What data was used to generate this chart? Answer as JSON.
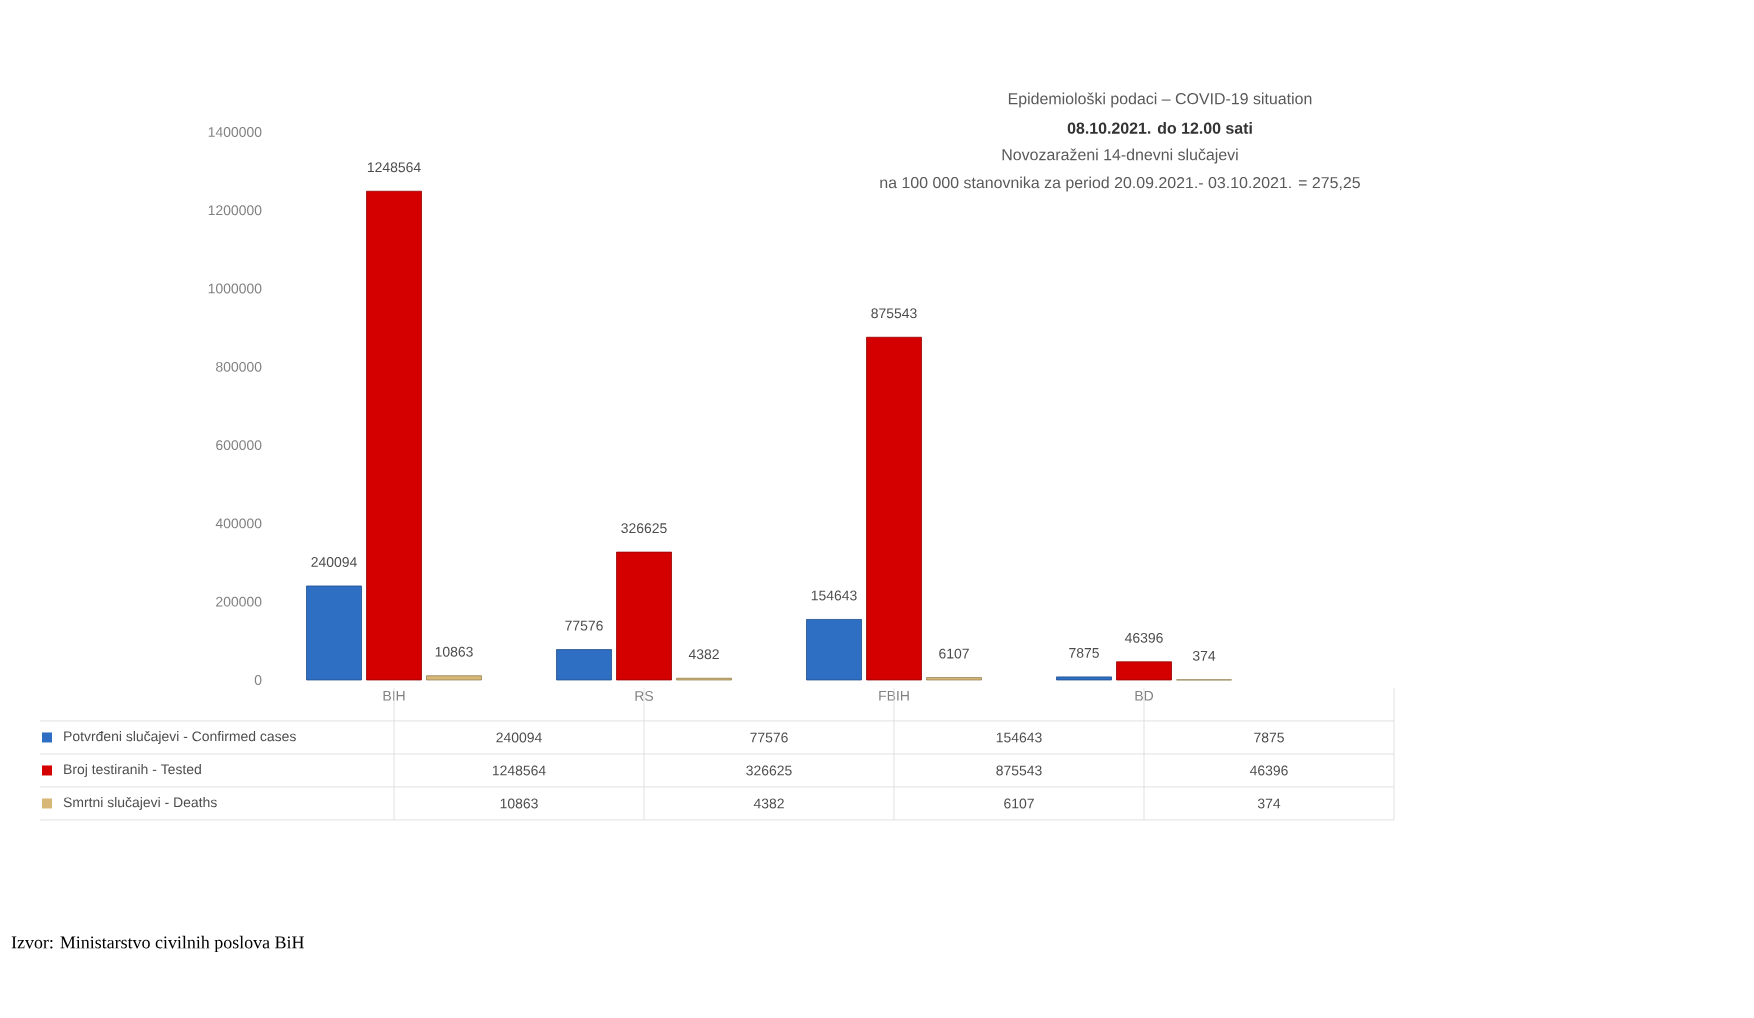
{
  "chart_data": {
    "type": "bar",
    "title": "Epidemiološki podaci – COVID-19 situation",
    "subtitle": "08.10.2021. do 12.00 sati",
    "annotations": [
      "Novozaraženi 14-dnevni slučajevi",
      "na 100 000 stanovnika za period 20.09.2021.- 03.10.2021. = 275,25",
      "Izvor: Ministarstvo civilnih poslova BiH"
    ],
    "categories": [
      "BIH",
      "RS",
      "FBIH",
      "BD"
    ],
    "series": [
      {
        "name": "Potvrđeni slučajevi - Confirmed cases",
        "color": "#2e6fc4",
        "values": [
          240094,
          77576,
          154643,
          7875
        ],
        "value_labels": [
          "240094",
          "77576",
          "154643",
          "7875"
        ]
      },
      {
        "name": "Broj testiranih - Tested",
        "color": "#d40000",
        "values": [
          1248564,
          326625,
          875543,
          46396
        ],
        "value_labels": [
          "1248564",
          "326625",
          "875543",
          "46396"
        ]
      },
      {
        "name": "Smrtni slučajevi - Deaths",
        "color": "#d8b878",
        "values": [
          10863,
          4382,
          6107,
          374
        ],
        "value_labels": [
          "10863",
          "4382",
          "6107",
          "374"
        ]
      }
    ],
    "ylim": [
      0,
      1400000
    ],
    "yticks": [
      0,
      200000,
      400000,
      600000,
      800000,
      1000000,
      1200000,
      1400000
    ],
    "data_labels": true,
    "legend": "bottom",
    "grid": false
  }
}
